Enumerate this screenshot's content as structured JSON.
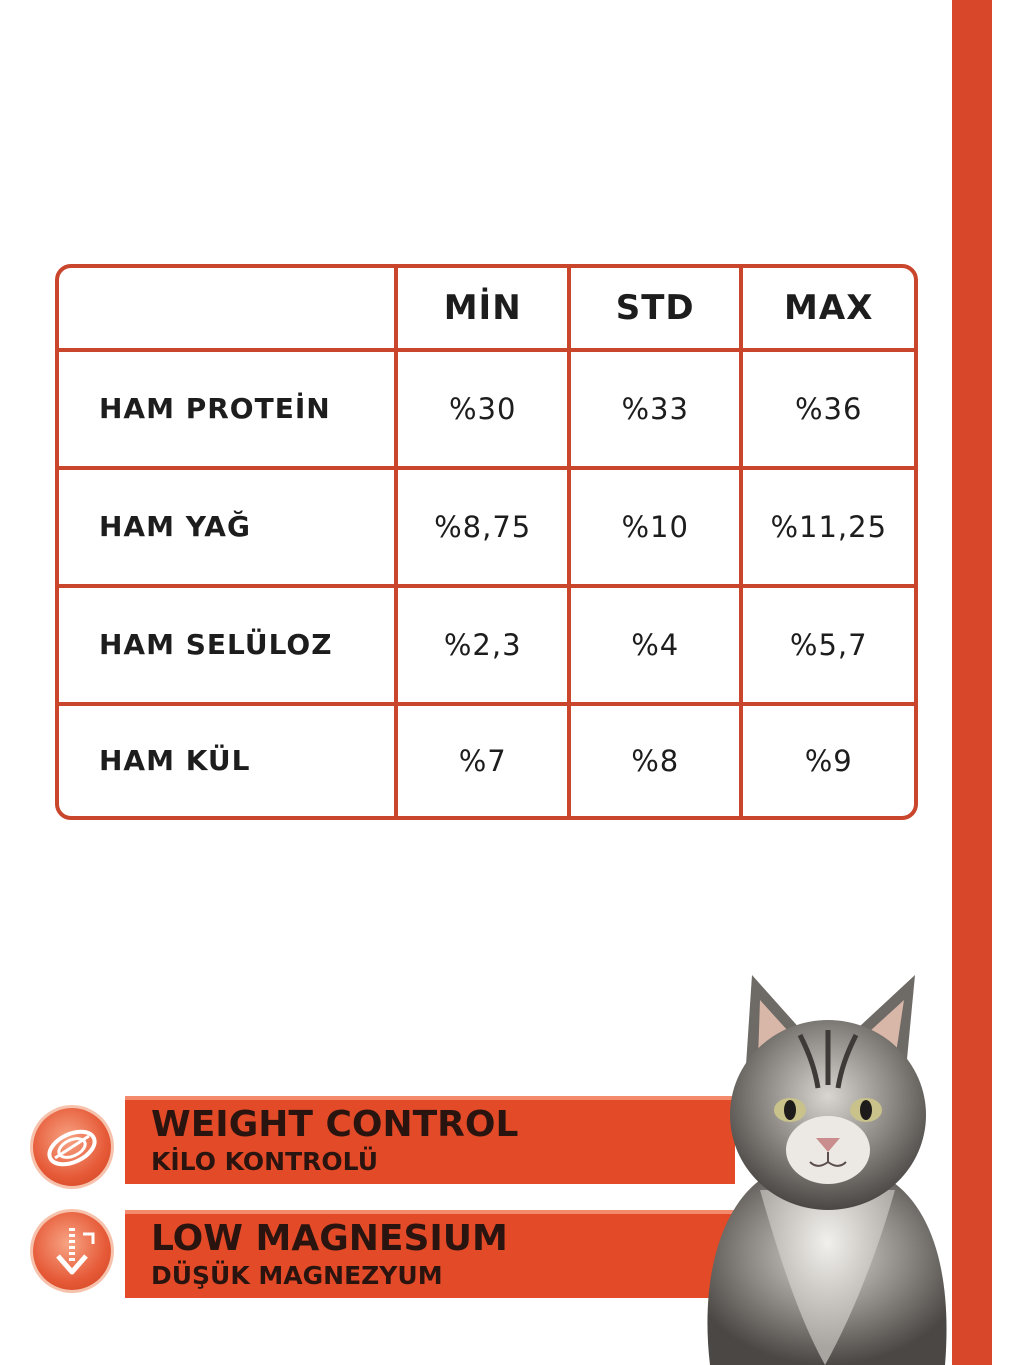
{
  "table": {
    "headers": [
      "",
      "MİN",
      "STD",
      "MAX"
    ],
    "rows": [
      {
        "label": "HAM PROTEİN",
        "min": "%30",
        "std": "%33",
        "max": "%36"
      },
      {
        "label": "HAM YAĞ",
        "min": "%8,75",
        "std": "%10",
        "max": "%11,25"
      },
      {
        "label": "HAM SELÜLOZ",
        "min": "%2,3",
        "std": "%4",
        "max": "%5,7"
      },
      {
        "label": "HAM KÜL",
        "min": "%7",
        "std": "%8",
        "max": "%9"
      }
    ]
  },
  "features": [
    {
      "title": "WEIGHT CONTROL",
      "subtitle": "KİLO KONTROLÜ",
      "icon": "measuring-tape-icon"
    },
    {
      "title": "LOW MAGNESIUM",
      "subtitle": "DÜŞÜK MAGNEZYUM",
      "icon": "down-arrow-icon"
    }
  ],
  "colors": {
    "accent": "#d9472b",
    "table_border": "#c9452c",
    "band": "#e34a27"
  }
}
